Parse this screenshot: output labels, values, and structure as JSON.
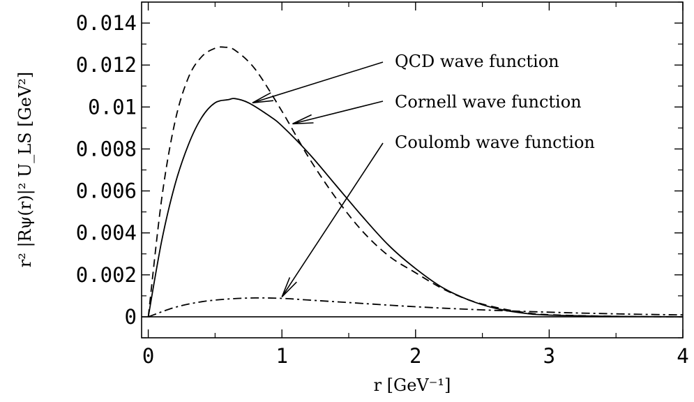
{
  "chart_data": {
    "type": "line",
    "title": "",
    "xlabel": "r [GeV⁻¹]",
    "ylabel": "r² |Rψ(r)|² U_LS   [GeV²]",
    "xlim": [
      -0.05,
      4.0
    ],
    "ylim": [
      -0.001,
      0.015
    ],
    "x_ticks": [
      "0",
      "1",
      "2",
      "3",
      "4"
    ],
    "y_ticks": [
      "0",
      "0.002",
      "0.004",
      "0.006",
      "0.008",
      "0.01",
      "0.012",
      "0.014"
    ],
    "x_tick_values": [
      0,
      1,
      2,
      3,
      4
    ],
    "y_tick_values": [
      0,
      0.002,
      0.004,
      0.006,
      0.008,
      0.01,
      0.012,
      0.014
    ],
    "grid": false,
    "legend": "none",
    "series": [
      {
        "name": "QCD wave function",
        "style": "solid",
        "x": [
          0,
          0.1,
          0.2,
          0.3,
          0.4,
          0.5,
          0.6,
          0.65,
          0.75,
          0.9,
          1.0,
          1.2,
          1.4,
          1.6,
          1.8,
          2.0,
          2.2,
          2.4,
          2.6,
          2.8,
          3.0,
          3.5,
          4.0
        ],
        "values": [
          0,
          0.0036,
          0.0063,
          0.0082,
          0.0095,
          0.0102,
          0.01035,
          0.0104,
          0.0102,
          0.0096,
          0.0091,
          0.0078,
          0.0063,
          0.0048,
          0.0034,
          0.0023,
          0.0014,
          0.0008,
          0.0004,
          0.00018,
          8e-05,
          2e-05,
          0.0
        ]
      },
      {
        "name": "Cornell wave function",
        "style": "dashed",
        "x": [
          0,
          0.1,
          0.2,
          0.3,
          0.4,
          0.5,
          0.57,
          0.65,
          0.8,
          1.0,
          1.2,
          1.4,
          1.6,
          1.8,
          2.0,
          2.2,
          2.4,
          2.6,
          2.8,
          3.0,
          3.5,
          4.0
        ],
        "values": [
          0,
          0.0056,
          0.0093,
          0.0114,
          0.0124,
          0.0128,
          0.01285,
          0.0127,
          0.0118,
          0.0098,
          0.0076,
          0.0057,
          0.0041,
          0.0029,
          0.0021,
          0.00135,
          0.0008,
          0.00045,
          0.00022,
          0.0001,
          2e-05,
          0.0
        ]
      },
      {
        "name": "Coulomb wave function",
        "style": "dashdot",
        "x": [
          0,
          0.2,
          0.4,
          0.6,
          0.8,
          1.0,
          1.2,
          1.5,
          2.0,
          2.5,
          3.0,
          3.5,
          4.0
        ],
        "values": [
          0,
          0.00045,
          0.00072,
          0.00085,
          0.0009,
          0.00088,
          0.0008,
          0.00068,
          0.00048,
          0.00033,
          0.00022,
          0.00014,
          9e-05
        ]
      }
    ],
    "annotations": [
      {
        "text": "QCD wave function",
        "arrow_to": [
          0.78,
          0.0102
        ]
      },
      {
        "text": "Cornell wave function",
        "arrow_to": [
          1.08,
          0.0092
        ]
      },
      {
        "text": "Coulomb wave function",
        "arrow_to": [
          1.0,
          0.00095
        ]
      }
    ]
  }
}
